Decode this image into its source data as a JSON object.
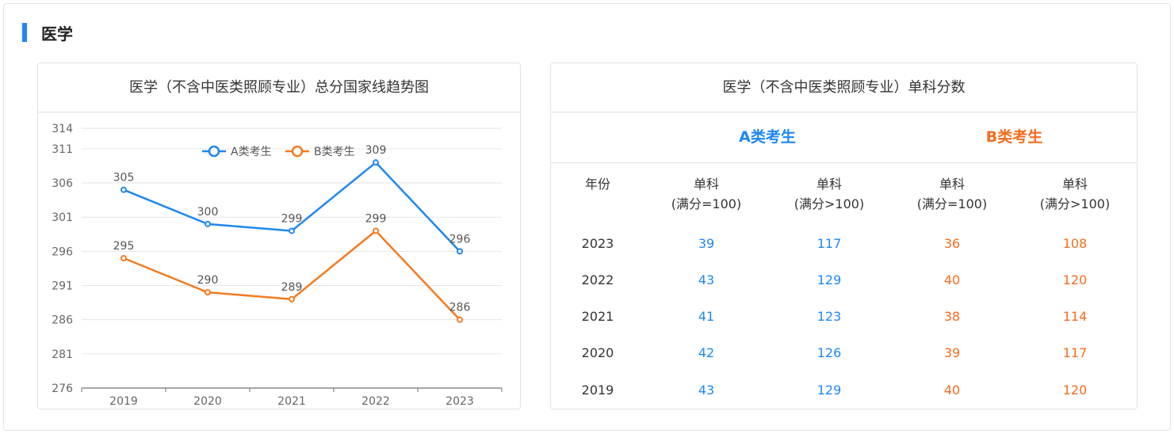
{
  "section": {
    "title": "医学"
  },
  "chart_card": {
    "title": "医学（不含中医类照顾专业）总分国家线趋势图"
  },
  "chart_data": {
    "type": "line",
    "title": "医学（不含中医类照顾专业）总分国家线趋势图",
    "categories": [
      "2019",
      "2020",
      "2021",
      "2022",
      "2023"
    ],
    "series": [
      {
        "name": "A类考生",
        "values": [
          305,
          300,
          299,
          309,
          296
        ],
        "color": "#1e88f0"
      },
      {
        "name": "B类考生",
        "values": [
          295,
          290,
          289,
          299,
          286
        ],
        "color": "#f57a1f"
      }
    ],
    "yticks": [
      276,
      281,
      286,
      291,
      296,
      301,
      306,
      311,
      314
    ],
    "ylim": [
      276,
      314
    ],
    "grid": true,
    "legend": "top-center",
    "data_labels": true
  },
  "table_card": {
    "title": "医学（不含中医类照顾专业）单科分数",
    "group_a": "A类考生",
    "group_b": "B类考生",
    "headers": [
      {
        "line1": "年份",
        "line2": ""
      },
      {
        "line1": "单科",
        "line2": "(满分=100)"
      },
      {
        "line1": "单科",
        "line2": "(满分>100)"
      },
      {
        "line1": "单科",
        "line2": "(满分=100)"
      },
      {
        "line1": "单科",
        "line2": "(满分>100)"
      }
    ],
    "rows": [
      {
        "year": "2023",
        "a100": "39",
        "a_gt100": "117",
        "b100": "36",
        "b_gt100": "108"
      },
      {
        "year": "2022",
        "a100": "43",
        "a_gt100": "129",
        "b100": "40",
        "b_gt100": "120"
      },
      {
        "year": "2021",
        "a100": "41",
        "a_gt100": "123",
        "b100": "38",
        "b_gt100": "114"
      },
      {
        "year": "2020",
        "a100": "42",
        "a_gt100": "126",
        "b100": "39",
        "b_gt100": "117"
      },
      {
        "year": "2019",
        "a100": "43",
        "a_gt100": "129",
        "b100": "40",
        "b_gt100": "120"
      }
    ]
  }
}
